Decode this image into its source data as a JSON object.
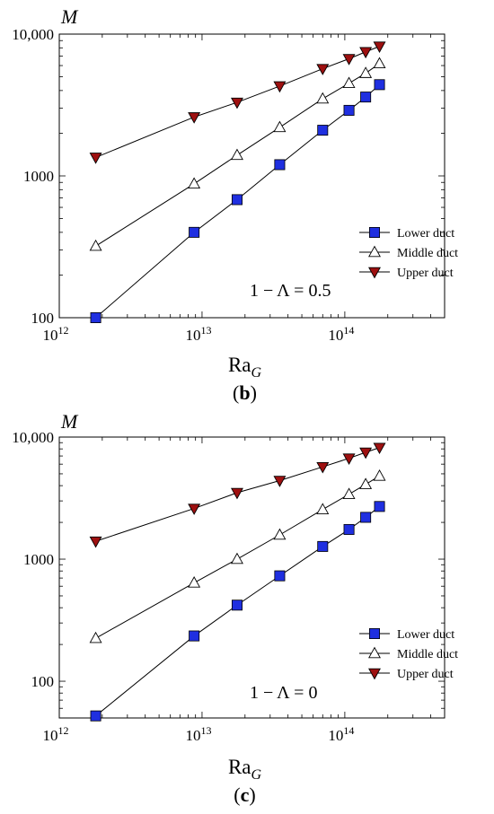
{
  "chart_data": [
    {
      "type": "line",
      "panel_label": "(b)",
      "annotation": "1 − Λ = 0.5",
      "ylabel": "M",
      "xlabel_main": "Ra",
      "xlabel_sub": "G",
      "x_scale": "log",
      "y_scale": "log",
      "xlim": [
        1000000000000.0,
        500000000000000.0
      ],
      "ylim": [
        100,
        10000
      ],
      "x_ticks": [
        {
          "value": 1000000000000.0,
          "base": "10",
          "exp": "12"
        },
        {
          "value": 10000000000000.0,
          "base": "10",
          "exp": "13"
        },
        {
          "value": 100000000000000.0,
          "base": "10",
          "exp": "14"
        }
      ],
      "y_ticks": [
        {
          "value": 100,
          "label": "100"
        },
        {
          "value": 1000,
          "label": "1000"
        },
        {
          "value": 10000,
          "label": "10,000"
        }
      ],
      "x": [
        1800000000000.0,
        8800000000000.0,
        17600000000000.0,
        35000000000000.0,
        70000000000000.0,
        107000000000000.0,
        140000000000000.0,
        175000000000000.0
      ],
      "series": [
        {
          "name": "Lower duct",
          "marker": "square",
          "values": [
            100,
            400,
            680,
            1200,
            2100,
            2900,
            3600,
            4400
          ]
        },
        {
          "name": "Middle duct",
          "marker": "triangle-up",
          "values": [
            320,
            880,
            1400,
            2200,
            3500,
            4500,
            5300,
            6200
          ]
        },
        {
          "name": "Upper duct",
          "marker": "triangle-down",
          "values": [
            1350,
            2600,
            3300,
            4300,
            5700,
            6700,
            7500,
            8200
          ]
        }
      ],
      "legend_position": "bottom-right",
      "grid": false
    },
    {
      "type": "line",
      "panel_label": "(c)",
      "annotation": "1 − Λ = 0",
      "ylabel": "M",
      "xlabel_main": "Ra",
      "xlabel_sub": "G",
      "x_scale": "log",
      "y_scale": "log",
      "xlim": [
        1000000000000.0,
        500000000000000.0
      ],
      "ylim": [
        50,
        10000
      ],
      "x_ticks": [
        {
          "value": 1000000000000.0,
          "base": "10",
          "exp": "12"
        },
        {
          "value": 10000000000000.0,
          "base": "10",
          "exp": "13"
        },
        {
          "value": 100000000000000.0,
          "base": "10",
          "exp": "14"
        }
      ],
      "y_ticks": [
        {
          "value": 100,
          "label": "100"
        },
        {
          "value": 1000,
          "label": "1000"
        },
        {
          "value": 10000,
          "label": "10,000"
        }
      ],
      "x": [
        1800000000000.0,
        8800000000000.0,
        17600000000000.0,
        35000000000000.0,
        70000000000000.0,
        107000000000000.0,
        140000000000000.0,
        175000000000000.0
      ],
      "series": [
        {
          "name": "Lower duct",
          "marker": "square",
          "values": [
            52,
            235,
            420,
            730,
            1270,
            1750,
            2200,
            2700
          ]
        },
        {
          "name": "Middle duct",
          "marker": "triangle-up",
          "values": [
            225,
            640,
            1000,
            1580,
            2550,
            3400,
            4100,
            4800
          ]
        },
        {
          "name": "Upper duct",
          "marker": "triangle-down",
          "values": [
            1400,
            2600,
            3500,
            4400,
            5700,
            6700,
            7500,
            8200
          ]
        }
      ],
      "legend_position": "bottom-right",
      "grid": false
    }
  ],
  "colors": {
    "lower_fill": "#1f2fe0",
    "middle_fill": "#ffffff",
    "upper_fill": "#9e1010",
    "stroke": "#000000"
  }
}
